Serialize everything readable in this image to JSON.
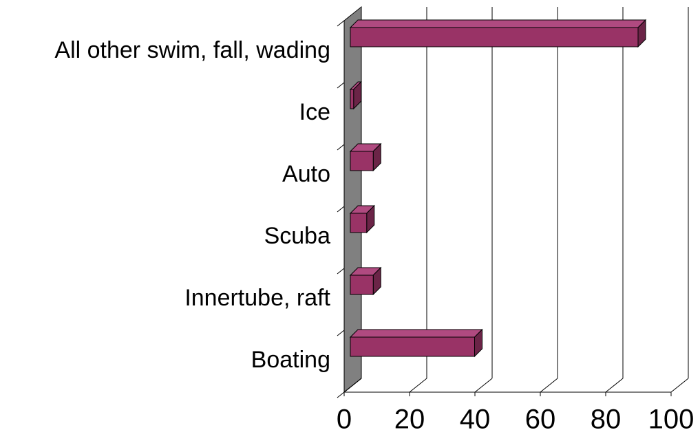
{
  "chart_data": {
    "type": "bar3d_horizontal",
    "categories": [
      "All other swim, fall, wading",
      "Ice",
      "Auto",
      "Scuba",
      "Innertube, raft",
      "Boating"
    ],
    "values": [
      88,
      1,
      7,
      5,
      7,
      38
    ],
    "color": "#993366",
    "xlim": [
      0,
      100
    ],
    "xticks": [
      0,
      20,
      40,
      60,
      80,
      100
    ],
    "grid": true
  }
}
